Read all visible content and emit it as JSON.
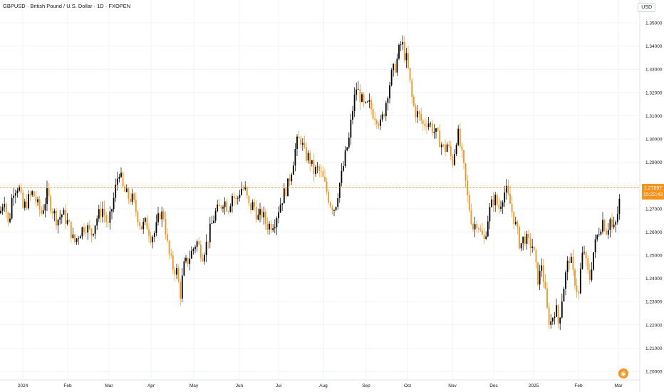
{
  "header": {
    "title": "GBPUSD · British Pound / U.S. Dollar · 1D · FXOPEN",
    "currency": "USD"
  },
  "last_price": {
    "value": "1.27897",
    "countdown": "15:22:43",
    "numeric": 1.27897
  },
  "colors": {
    "up": "#000000",
    "down": "#f7931a",
    "price_line": "#f7931a",
    "grid": "#f0f3fa",
    "axis_text": "#131722"
  },
  "chart_data": {
    "type": "candlestick",
    "symbol": "GBPUSD",
    "interval": "1D",
    "source": "FXOPEN",
    "y_axis": {
      "ticks": [
        "1.35000",
        "1.34000",
        "1.33000",
        "1.32000",
        "1.31000",
        "1.30000",
        "1.29000",
        "1.28000",
        "1.27000",
        "1.26000",
        "1.25000",
        "1.24000",
        "1.23000",
        "1.22000",
        "1.21000",
        "1.20000"
      ],
      "range": [
        1.2,
        1.35
      ]
    },
    "x_axis": {
      "ticks": [
        "2024",
        "Feb",
        "Mar",
        "Apr",
        "May",
        "Jun",
        "Jul",
        "Aug",
        "Sep",
        "Oct",
        "Nov",
        "Dec",
        "2025",
        "Feb",
        "Mar"
      ]
    },
    "path": [
      [
        1.268,
        0
      ],
      [
        1.275,
        6
      ],
      [
        1.262,
        12
      ],
      [
        1.278,
        18
      ],
      [
        1.28,
        26
      ],
      [
        1.27,
        32
      ],
      [
        1.274,
        40
      ],
      [
        1.277,
        46
      ],
      [
        1.272,
        52
      ],
      [
        1.268,
        58
      ],
      [
        1.276,
        66
      ],
      [
        1.271,
        72
      ],
      [
        1.265,
        80
      ],
      [
        1.268,
        88
      ],
      [
        1.262,
        98
      ],
      [
        1.255,
        104
      ],
      [
        1.26,
        112
      ],
      [
        1.263,
        120
      ],
      [
        1.259,
        128
      ],
      [
        1.266,
        136
      ],
      [
        1.27,
        144
      ],
      [
        1.262,
        152
      ],
      [
        1.275,
        160
      ],
      [
        1.287,
        167
      ],
      [
        1.278,
        173
      ],
      [
        1.275,
        180
      ],
      [
        1.274,
        186
      ],
      [
        1.268,
        192
      ],
      [
        1.262,
        198
      ],
      [
        1.264,
        205
      ],
      [
        1.258,
        212
      ],
      [
        1.26,
        218
      ],
      [
        1.268,
        224
      ],
      [
        1.267,
        230
      ],
      [
        1.252,
        236
      ],
      [
        1.245,
        242
      ],
      [
        1.243,
        248
      ],
      [
        1.233,
        253
      ],
      [
        1.245,
        258
      ],
      [
        1.248,
        264
      ],
      [
        1.252,
        270
      ],
      [
        1.256,
        276
      ],
      [
        1.25,
        284
      ],
      [
        1.255,
        290
      ],
      [
        1.262,
        296
      ],
      [
        1.268,
        302
      ],
      [
        1.27,
        308
      ],
      [
        1.274,
        314
      ],
      [
        1.27,
        320
      ],
      [
        1.276,
        326
      ],
      [
        1.273,
        332
      ],
      [
        1.279,
        338
      ],
      [
        1.278,
        344
      ],
      [
        1.27,
        350
      ],
      [
        1.272,
        356
      ],
      [
        1.266,
        362
      ],
      [
        1.268,
        368
      ],
      [
        1.263,
        374
      ],
      [
        1.263,
        380
      ],
      [
        1.265,
        386
      ],
      [
        1.271,
        392
      ],
      [
        1.276,
        398
      ],
      [
        1.28,
        404
      ],
      [
        1.288,
        410
      ],
      [
        1.298,
        416
      ],
      [
        1.3,
        422
      ],
      [
        1.293,
        428
      ],
      [
        1.292,
        434
      ],
      [
        1.286,
        440
      ],
      [
        1.287,
        446
      ],
      [
        1.284,
        452
      ],
      [
        1.278,
        458
      ],
      [
        1.272,
        464
      ],
      [
        1.27,
        470
      ],
      [
        1.28,
        476
      ],
      [
        1.285,
        480
      ],
      [
        1.295,
        486
      ],
      [
        1.3,
        490
      ],
      [
        1.311,
        494
      ],
      [
        1.322,
        500
      ],
      [
        1.318,
        506
      ],
      [
        1.313,
        512
      ],
      [
        1.315,
        518
      ],
      [
        1.311,
        524
      ],
      [
        1.309,
        530
      ],
      [
        1.306,
        534
      ],
      [
        1.313,
        540
      ],
      [
        1.32,
        544
      ],
      [
        1.328,
        550
      ],
      [
        1.332,
        556
      ],
      [
        1.338,
        560
      ],
      [
        1.342,
        564
      ],
      [
        1.336,
        568
      ],
      [
        1.334,
        571
      ],
      [
        1.325,
        575
      ],
      [
        1.318,
        578
      ],
      [
        1.312,
        582
      ],
      [
        1.31,
        588
      ],
      [
        1.306,
        594
      ],
      [
        1.308,
        600
      ],
      [
        1.305,
        606
      ],
      [
        1.302,
        612
      ],
      [
        1.299,
        618
      ],
      [
        1.295,
        624
      ],
      [
        1.298,
        628
      ],
      [
        1.293,
        632
      ],
      [
        1.29,
        636
      ],
      [
        1.3,
        640
      ],
      [
        1.302,
        643
      ],
      [
        1.293,
        648
      ],
      [
        1.285,
        652
      ],
      [
        1.275,
        656
      ],
      [
        1.268,
        660
      ],
      [
        1.262,
        664
      ],
      [
        1.265,
        670
      ],
      [
        1.26,
        674
      ],
      [
        1.256,
        680
      ],
      [
        1.265,
        684
      ],
      [
        1.27,
        688
      ],
      [
        1.275,
        694
      ],
      [
        1.27,
        700
      ],
      [
        1.276,
        706
      ],
      [
        1.278,
        710
      ],
      [
        1.272,
        716
      ],
      [
        1.265,
        722
      ],
      [
        1.26,
        726
      ],
      [
        1.254,
        730
      ],
      [
        1.258,
        736
      ],
      [
        1.255,
        742
      ],
      [
        1.254,
        748
      ],
      [
        1.245,
        752
      ],
      [
        1.238,
        756
      ],
      [
        1.247,
        760
      ],
      [
        1.237,
        764
      ],
      [
        1.226,
        768
      ],
      [
        1.22,
        772
      ],
      [
        1.224,
        776
      ],
      [
        1.228,
        780
      ],
      [
        1.22,
        784
      ],
      [
        1.23,
        788
      ],
      [
        1.238,
        792
      ],
      [
        1.245,
        796
      ],
      [
        1.25,
        800
      ],
      [
        1.242,
        804
      ],
      [
        1.238,
        808
      ],
      [
        1.232,
        812
      ],
      [
        1.248,
        816
      ],
      [
        1.252,
        820
      ],
      [
        1.243,
        824
      ],
      [
        1.24,
        828
      ],
      [
        1.25,
        832
      ],
      [
        1.258,
        838
      ],
      [
        1.262,
        842
      ],
      [
        1.265,
        846
      ],
      [
        1.26,
        852
      ],
      [
        1.266,
        856
      ],
      [
        1.26,
        860
      ],
      [
        1.263,
        864
      ],
      [
        1.27,
        868
      ],
      [
        1.279,
        872
      ]
    ]
  }
}
